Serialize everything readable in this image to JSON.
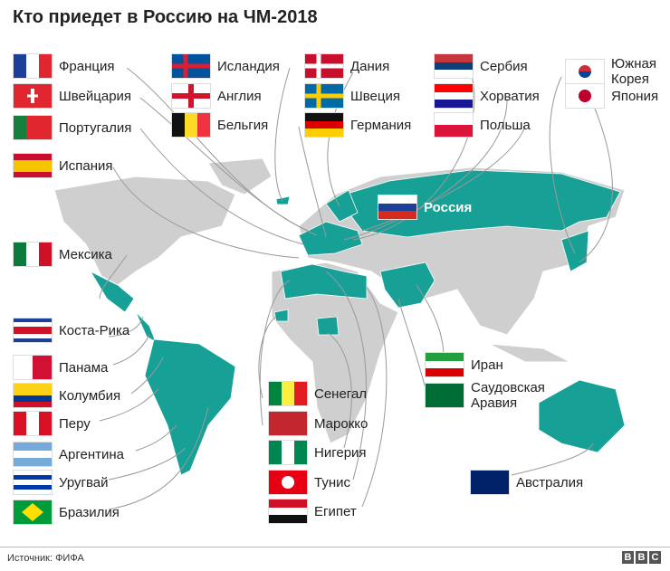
{
  "title": "Кто приедет в Россию на ЧМ-2018",
  "colors": {
    "land": "#cfcfcf",
    "highlight": "#17a096",
    "line": "#999999"
  },
  "host": {
    "name": "Россия",
    "colors": [
      "#ffffff",
      "#1c3f99",
      "#d52b1e"
    ],
    "layout": "h"
  },
  "teams": [
    {
      "name": "Франция",
      "colors": [
        "#1c3f99",
        "#ffffff",
        "#e0262f"
      ],
      "layout": "v"
    },
    {
      "name": "Швейцария",
      "colors": [
        "#e0262f"
      ],
      "layout": "v",
      "mark": "cross"
    },
    {
      "name": "Португалия",
      "colors": [
        "#15803d",
        "#e0262f",
        "#e0262f"
      ],
      "layout": "v"
    },
    {
      "name": "Испания",
      "colors": [
        "#c8102e",
        "#f5c400",
        "#f5c400",
        "#c8102e"
      ],
      "layout": "h"
    },
    {
      "name": "Мексика",
      "colors": [
        "#0b7a3b",
        "#ffffff",
        "#ce1126"
      ],
      "layout": "v"
    },
    {
      "name": "Коста-Рика",
      "colors": [
        "#1c3f99",
        "#ffffff",
        "#ce1126",
        "#ce1126",
        "#ffffff",
        "#1c3f99"
      ],
      "layout": "h"
    },
    {
      "name": "Панама",
      "colors": [
        "#ffffff",
        "#d21034"
      ],
      "layout": "v"
    },
    {
      "name": "Колумбия",
      "colors": [
        "#fcd116",
        "#fcd116",
        "#003893",
        "#ce1126"
      ],
      "layout": "h"
    },
    {
      "name": "Перу",
      "colors": [
        "#d91023",
        "#ffffff",
        "#d91023"
      ],
      "layout": "v"
    },
    {
      "name": "Аргентина",
      "colors": [
        "#75aadb",
        "#ffffff",
        "#75aadb"
      ],
      "layout": "h"
    },
    {
      "name": "Уругвай",
      "colors": [
        "#ffffff",
        "#0038a8",
        "#ffffff",
        "#0038a8",
        "#ffffff"
      ],
      "layout": "h"
    },
    {
      "name": "Бразилия",
      "colors": [
        "#009b3a"
      ],
      "layout": "v",
      "mark": "diamond"
    },
    {
      "name": "Исландия",
      "colors": [
        "#02529c"
      ],
      "layout": "v",
      "mark": "nordic-red"
    },
    {
      "name": "Англия",
      "colors": [
        "#ffffff"
      ],
      "layout": "v",
      "mark": "cross-red"
    },
    {
      "name": "Бельгия",
      "colors": [
        "#111111",
        "#fdda24",
        "#ef3340"
      ],
      "layout": "v"
    },
    {
      "name": "Дания",
      "colors": [
        "#c8102e"
      ],
      "layout": "v",
      "mark": "nordic-white"
    },
    {
      "name": "Швеция",
      "colors": [
        "#006aa7"
      ],
      "layout": "v",
      "mark": "nordic-yellow"
    },
    {
      "name": "Германия",
      "colors": [
        "#111111",
        "#dd0000",
        "#ffce00"
      ],
      "layout": "h"
    },
    {
      "name": "Сербия",
      "colors": [
        "#c6363c",
        "#0c4076",
        "#ffffff"
      ],
      "layout": "h"
    },
    {
      "name": "Хорватия",
      "colors": [
        "#ff0000",
        "#ffffff",
        "#171796"
      ],
      "layout": "h"
    },
    {
      "name": "Польша",
      "colors": [
        "#ffffff",
        "#dc143c"
      ],
      "layout": "h"
    },
    {
      "name": "Южная Корея",
      "colors": [
        "#ffffff"
      ],
      "layout": "v",
      "mark": "dot-korea"
    },
    {
      "name": "Япония",
      "colors": [
        "#ffffff"
      ],
      "layout": "v",
      "mark": "dot-red"
    },
    {
      "name": "Сенегал",
      "colors": [
        "#00853f",
        "#fdef42",
        "#e31b23"
      ],
      "layout": "v"
    },
    {
      "name": "Марокко",
      "colors": [
        "#c1272d"
      ],
      "layout": "v"
    },
    {
      "name": "Нигерия",
      "colors": [
        "#008751",
        "#ffffff",
        "#008751"
      ],
      "layout": "v"
    },
    {
      "name": "Тунис",
      "colors": [
        "#e70013"
      ],
      "layout": "v",
      "mark": "dot-white"
    },
    {
      "name": "Египет",
      "colors": [
        "#ce1126",
        "#ffffff",
        "#111111"
      ],
      "layout": "h"
    },
    {
      "name": "Иран",
      "colors": [
        "#239f40",
        "#ffffff",
        "#da0000"
      ],
      "layout": "h"
    },
    {
      "name": "Саудовская Аравия",
      "colors": [
        "#006c35"
      ],
      "layout": "v"
    },
    {
      "name": "Австралия",
      "colors": [
        "#012169"
      ],
      "layout": "v"
    }
  ],
  "footer": {
    "source": "Источник: ФИФА",
    "logo": [
      "B",
      "B",
      "C"
    ]
  }
}
